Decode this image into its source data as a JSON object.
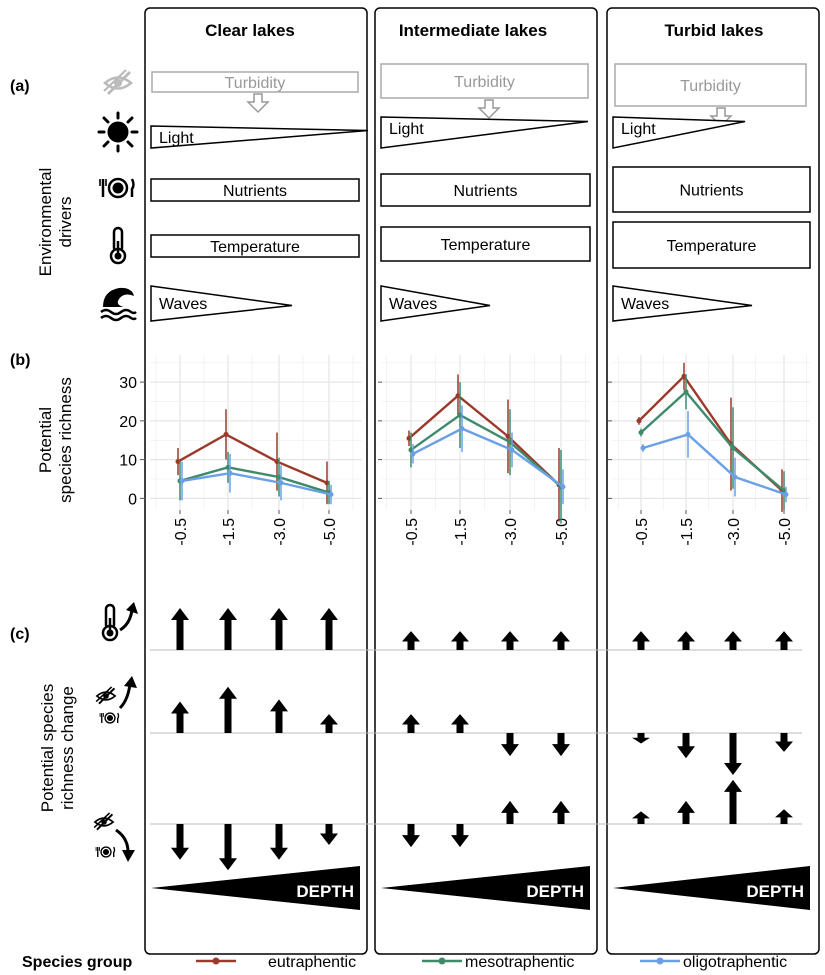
{
  "panel_labels": {
    "a": "(a)",
    "b": "(b)",
    "c": "(c)"
  },
  "columns": [
    {
      "title": "Clear lakes"
    },
    {
      "title": "Intermediate lakes"
    },
    {
      "title": "Turbid lakes"
    }
  ],
  "drivers": {
    "turbidity": "Turbidity",
    "light": "Light",
    "nutrients": "Nutrients",
    "temperature": "Temperature",
    "waves": "Waves"
  },
  "axis_labels": {
    "environmental_drivers": [
      "Environmental",
      "drivers"
    ],
    "species_richness": [
      "Potential",
      "species richness"
    ],
    "richness_change": [
      "Potential species",
      "richness change"
    ]
  },
  "depth_label": "DEPTH",
  "legend": {
    "title": "Species group",
    "items": [
      {
        "name": "eutraphentic",
        "color": "#9b3a2a"
      },
      {
        "name": "mesotraphentic",
        "color": "#3f8a6b"
      },
      {
        "name": "oligotraphentic",
        "color": "#6aa0e6"
      }
    ]
  },
  "icons": [
    "eye-slash-icon",
    "sun-icon",
    "plate-cutlery-icon",
    "thermometer-icon",
    "wave-icon"
  ],
  "chart_data": {
    "type": "line",
    "x_ticks": [
      "-0.5",
      "-1.5",
      "-3.0",
      "-5.0"
    ],
    "y_ticks": [
      0,
      10,
      20,
      30
    ],
    "ylim": [
      -3,
      37
    ],
    "panels": [
      {
        "lake": "Clear lakes",
        "series": [
          {
            "name": "eutraphentic",
            "values": [
              9.5,
              16.5,
              9.5,
              4
            ],
            "err": [
              3.5,
              6.5,
              7.5,
              5.5
            ]
          },
          {
            "name": "mesotraphentic",
            "values": [
              4.5,
              8,
              5.5,
              1.5
            ],
            "err": [
              5,
              4,
              5,
              3
            ]
          },
          {
            "name": "oligotraphentic",
            "values": [
              4.5,
              6.5,
              4,
              1
            ],
            "err": [
              5,
              5,
              4.5,
              2.5
            ]
          }
        ]
      },
      {
        "lake": "Intermediate lakes",
        "series": [
          {
            "name": "eutraphentic",
            "values": [
              15.5,
              26.5,
              16,
              3.5
            ],
            "err": [
              2,
              5.5,
              9.5,
              9.5
            ]
          },
          {
            "name": "mesotraphentic",
            "values": [
              12.5,
              21.5,
              14.5,
              3
            ],
            "err": [
              4.5,
              8.5,
              8.5,
              9.5
            ]
          },
          {
            "name": "oligotraphentic",
            "values": [
              11.5,
              18,
              12.5,
              3
            ],
            "err": [
              2.5,
              6,
              4.5,
              4.5
            ]
          }
        ]
      },
      {
        "lake": "Turbid lakes",
        "series": [
          {
            "name": "eutraphentic",
            "values": [
              20,
              31.5,
              14,
              2
            ],
            "err": [
              1,
              3.5,
              12,
              5.5
            ]
          },
          {
            "name": "mesotraphentic",
            "values": [
              17,
              27.5,
              13,
              2
            ],
            "err": [
              1,
              4.5,
              10.5,
              5
            ]
          },
          {
            "name": "oligotraphentic",
            "values": [
              13,
              16.5,
              5.5,
              1
            ],
            "err": [
              1,
              6,
              5,
              2
            ]
          }
        ]
      }
    ],
    "change_rows": [
      {
        "scenario": "temperature increase",
        "values": [
          [
            1.0,
            1.0,
            1.0,
            1.0
          ],
          [
            0.45,
            0.45,
            0.45,
            0.45
          ],
          [
            0.45,
            0.45,
            0.45,
            0.45
          ]
        ]
      },
      {
        "scenario": "turbidity and nutrients increase",
        "values": [
          [
            0.75,
            1.1,
            0.8,
            0.45
          ],
          [
            0.45,
            0.45,
            -0.55,
            -0.55
          ],
          [
            -0.25,
            -0.6,
            -1.0,
            -0.45
          ]
        ]
      },
      {
        "scenario": "turbidity and nutrients decrease",
        "values": [
          [
            -0.85,
            -1.1,
            -0.85,
            -0.5
          ],
          [
            -0.55,
            -0.55,
            0.55,
            0.55
          ],
          [
            0.3,
            0.55,
            1.05,
            0.35
          ]
        ]
      }
    ]
  }
}
